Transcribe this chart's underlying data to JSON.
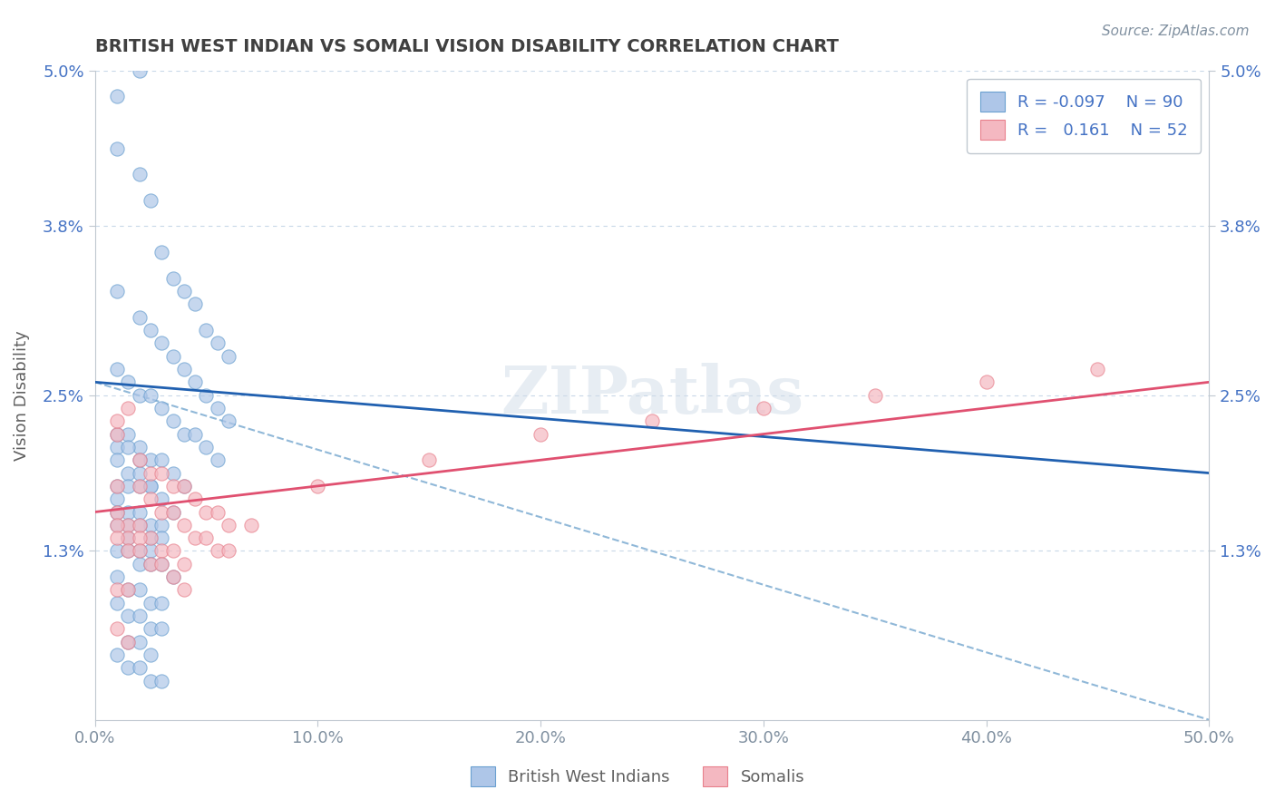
{
  "title": "BRITISH WEST INDIAN VS SOMALI VISION DISABILITY CORRELATION CHART",
  "source": "Source: ZipAtlas.com",
  "xlabel": "",
  "ylabel": "Vision Disability",
  "xlim": [
    0.0,
    0.5
  ],
  "ylim": [
    0.0,
    0.05
  ],
  "yticks": [
    0.013,
    0.025,
    0.038,
    0.05
  ],
  "ytick_labels": [
    "1.3%",
    "2.5%",
    "3.8%",
    "5.0%"
  ],
  "xticks": [
    0.0,
    0.1,
    0.2,
    0.3,
    0.4,
    0.5
  ],
  "xtick_labels": [
    "0.0%",
    "10.0%",
    "20.0%",
    "30.0%",
    "40.0%",
    "50.0%"
  ],
  "legend_entries": [
    {
      "label": "British West Indians",
      "color": "#aec6e8",
      "r": "-0.097",
      "n": "90"
    },
    {
      "label": "Somalis",
      "color": "#f4b8c1",
      "r": "0.161",
      "n": "52"
    }
  ],
  "blue_scatter_x": [
    0.01,
    0.02,
    0.025,
    0.03,
    0.035,
    0.04,
    0.045,
    0.05,
    0.055,
    0.06,
    0.01,
    0.02,
    0.025,
    0.03,
    0.035,
    0.04,
    0.045,
    0.05,
    0.055,
    0.06,
    0.01,
    0.015,
    0.02,
    0.025,
    0.03,
    0.035,
    0.04,
    0.045,
    0.05,
    0.055,
    0.01,
    0.015,
    0.02,
    0.025,
    0.03,
    0.035,
    0.04,
    0.01,
    0.015,
    0.02,
    0.01,
    0.015,
    0.02,
    0.025,
    0.03,
    0.035,
    0.02,
    0.025,
    0.01,
    0.015,
    0.01,
    0.015,
    0.02,
    0.025,
    0.03,
    0.01,
    0.015,
    0.02,
    0.025,
    0.03,
    0.01,
    0.015,
    0.02,
    0.025,
    0.01,
    0.015,
    0.02,
    0.025,
    0.03,
    0.035,
    0.01,
    0.015,
    0.02,
    0.025,
    0.03,
    0.01,
    0.015,
    0.02,
    0.025,
    0.03,
    0.015,
    0.02,
    0.025,
    0.01,
    0.015,
    0.02,
    0.025,
    0.03,
    0.01,
    0.02
  ],
  "blue_scatter_y": [
    0.048,
    0.042,
    0.04,
    0.036,
    0.034,
    0.033,
    0.032,
    0.03,
    0.029,
    0.028,
    0.033,
    0.031,
    0.03,
    0.029,
    0.028,
    0.027,
    0.026,
    0.025,
    0.024,
    0.023,
    0.027,
    0.026,
    0.025,
    0.025,
    0.024,
    0.023,
    0.022,
    0.022,
    0.021,
    0.02,
    0.022,
    0.022,
    0.021,
    0.02,
    0.02,
    0.019,
    0.018,
    0.021,
    0.021,
    0.02,
    0.02,
    0.019,
    0.018,
    0.018,
    0.017,
    0.016,
    0.019,
    0.018,
    0.018,
    0.018,
    0.017,
    0.016,
    0.016,
    0.015,
    0.015,
    0.016,
    0.015,
    0.015,
    0.014,
    0.014,
    0.015,
    0.014,
    0.013,
    0.013,
    0.013,
    0.013,
    0.012,
    0.012,
    0.012,
    0.011,
    0.011,
    0.01,
    0.01,
    0.009,
    0.009,
    0.009,
    0.008,
    0.008,
    0.007,
    0.007,
    0.006,
    0.006,
    0.005,
    0.005,
    0.004,
    0.004,
    0.003,
    0.003,
    0.044,
    0.05
  ],
  "pink_scatter_x": [
    0.01,
    0.02,
    0.025,
    0.03,
    0.035,
    0.04,
    0.045,
    0.05,
    0.055,
    0.06,
    0.01,
    0.02,
    0.025,
    0.03,
    0.035,
    0.04,
    0.045,
    0.05,
    0.055,
    0.06,
    0.01,
    0.015,
    0.02,
    0.025,
    0.03,
    0.035,
    0.04,
    0.01,
    0.015,
    0.02,
    0.01,
    0.015,
    0.02,
    0.025,
    0.03,
    0.035,
    0.04,
    0.07,
    0.1,
    0.15,
    0.2,
    0.25,
    0.3,
    0.35,
    0.4,
    0.45,
    0.01,
    0.015,
    0.01,
    0.015,
    0.01,
    0.015
  ],
  "pink_scatter_y": [
    0.022,
    0.02,
    0.019,
    0.019,
    0.018,
    0.018,
    0.017,
    0.016,
    0.016,
    0.015,
    0.018,
    0.018,
    0.017,
    0.016,
    0.016,
    0.015,
    0.014,
    0.014,
    0.013,
    0.013,
    0.016,
    0.015,
    0.015,
    0.014,
    0.013,
    0.013,
    0.012,
    0.015,
    0.014,
    0.014,
    0.014,
    0.013,
    0.013,
    0.012,
    0.012,
    0.011,
    0.01,
    0.015,
    0.018,
    0.02,
    0.022,
    0.023,
    0.024,
    0.025,
    0.026,
    0.027,
    0.01,
    0.01,
    0.007,
    0.006,
    0.023,
    0.024
  ],
  "blue_line_x": [
    0.0,
    0.5
  ],
  "blue_line_y": [
    0.026,
    0.019
  ],
  "pink_line_x": [
    0.0,
    0.5
  ],
  "pink_line_y": [
    0.016,
    0.026
  ],
  "dash_line_x": [
    0.0,
    0.5
  ],
  "dash_line_y": [
    0.026,
    0.0
  ],
  "background_color": "#ffffff",
  "grid_color": "#c8d8e8",
  "title_color": "#404040",
  "axis_label_color": "#606060",
  "tick_color": "#8090a0",
  "legend_text_color": "#4472c4",
  "watermark_text": "ZIPatlas",
  "watermark_color": "#d0dce8"
}
